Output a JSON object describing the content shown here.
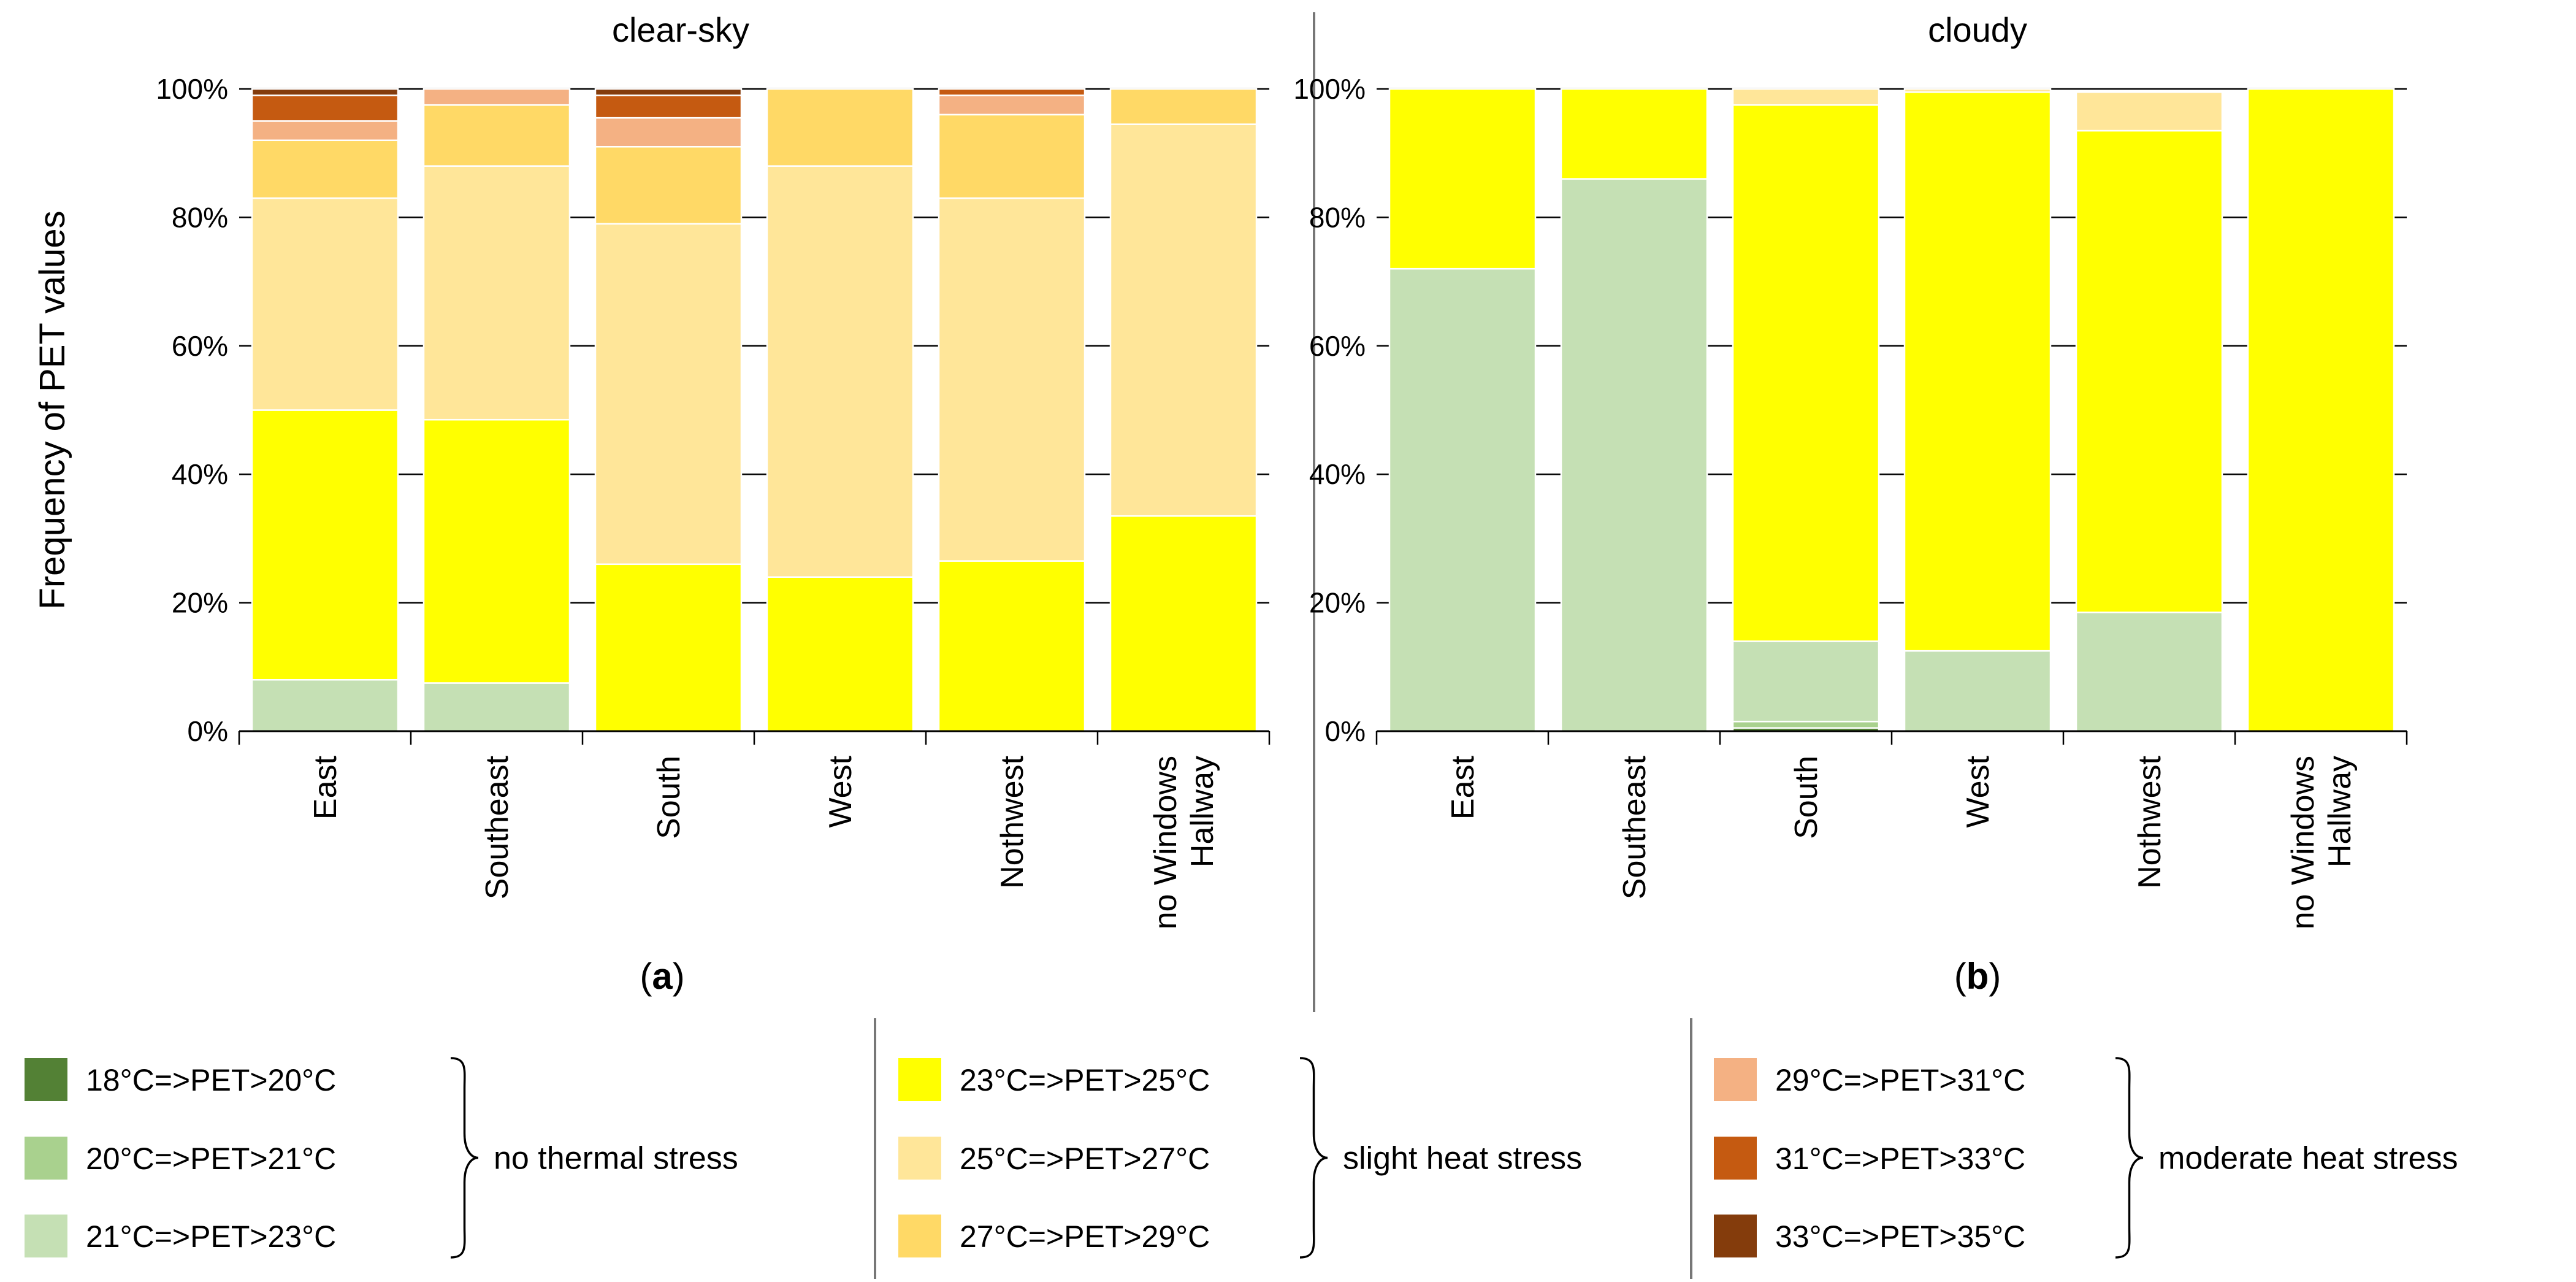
{
  "chart_data": [
    {
      "type": "bar",
      "stacked": true,
      "title": "clear-sky",
      "panel_label": "a",
      "ylabel": "Frequency of PET values",
      "xlabel": "",
      "ylim": [
        0,
        100
      ],
      "yticks": [
        "0%",
        "20%",
        "40%",
        "60%",
        "80%",
        "100%"
      ],
      "categories": [
        [
          "East"
        ],
        [
          "Southeast"
        ],
        [
          "South"
        ],
        [
          "West"
        ],
        [
          "Nothwest"
        ],
        [
          "Hallway",
          "no Windows"
        ]
      ],
      "series": [
        {
          "name": "18°C=>PET>20°C",
          "color": "#538135",
          "values": [
            0,
            0,
            0,
            0,
            0,
            0
          ]
        },
        {
          "name": "20°C=>PET>21°C",
          "color": "#A9D18E",
          "values": [
            0,
            0,
            0,
            0,
            0,
            0
          ]
        },
        {
          "name": "21°C=>PET>23°C",
          "color": "#C5E0B4",
          "values": [
            8,
            7.5,
            0,
            0,
            0,
            0
          ]
        },
        {
          "name": "23°C=>PET>25°C",
          "color": "#FFFF00",
          "values": [
            42,
            41,
            26,
            24,
            26.5,
            33.5
          ]
        },
        {
          "name": "25°C=>PET>27°C",
          "color": "#FFE699",
          "values": [
            33,
            39.5,
            53,
            64,
            56.5,
            61
          ]
        },
        {
          "name": "27°C=>PET>29°C",
          "color": "#FFD966",
          "values": [
            9,
            9.5,
            12,
            12,
            13,
            5.5
          ]
        },
        {
          "name": "29°C=>PET>31°C",
          "color": "#F4B183",
          "values": [
            3,
            2.5,
            4.5,
            0,
            3,
            0
          ]
        },
        {
          "name": "31°C=>PET>33°C",
          "color": "#C55A11",
          "values": [
            4,
            0,
            3.5,
            0,
            1,
            0
          ]
        },
        {
          "name": "33°C=>PET>35°C",
          "color": "#843C0C",
          "values": [
            1,
            0,
            1,
            0,
            0,
            0
          ]
        }
      ]
    },
    {
      "type": "bar",
      "stacked": true,
      "title": "cloudy",
      "panel_label": "b",
      "ylabel": "",
      "xlabel": "",
      "ylim": [
        0,
        100
      ],
      "yticks": [
        "0%",
        "20%",
        "40%",
        "60%",
        "80%",
        "100%"
      ],
      "categories": [
        [
          "East"
        ],
        [
          "Southeast"
        ],
        [
          "South"
        ],
        [
          "West"
        ],
        [
          "Nothwest"
        ],
        [
          "Hallway",
          "no Windows"
        ]
      ],
      "series": [
        {
          "name": "18°C=>PET>20°C",
          "color": "#538135",
          "values": [
            0,
            0,
            0.5,
            0,
            0,
            0
          ]
        },
        {
          "name": "20°C=>PET>21°C",
          "color": "#A9D18E",
          "values": [
            0,
            0,
            1,
            0,
            0,
            0
          ]
        },
        {
          "name": "21°C=>PET>23°C",
          "color": "#C5E0B4",
          "values": [
            72,
            86,
            12.5,
            12.5,
            18.5,
            0
          ]
        },
        {
          "name": "23°C=>PET>25°C",
          "color": "#FFFF00",
          "values": [
            28,
            14,
            83.5,
            87,
            75,
            100
          ]
        },
        {
          "name": "25°C=>PET>27°C",
          "color": "#FFE699",
          "values": [
            0,
            0,
            2.5,
            0.5,
            6,
            0
          ]
        },
        {
          "name": "27°C=>PET>29°C",
          "color": "#FFD966",
          "values": [
            0,
            0,
            0,
            0,
            0,
            0
          ]
        },
        {
          "name": "29°C=>PET>31°C",
          "color": "#F4B183",
          "values": [
            0,
            0,
            0,
            0,
            0,
            0
          ]
        },
        {
          "name": "31°C=>PET>33°C",
          "color": "#C55A11",
          "values": [
            0,
            0,
            0,
            0,
            0,
            0
          ]
        },
        {
          "name": "33°C=>PET>35°C",
          "color": "#843C0C",
          "values": [
            0,
            0,
            0,
            0,
            0,
            0
          ]
        }
      ]
    }
  ],
  "legend": {
    "groups": [
      {
        "label": "no thermal stress",
        "entries": [
          {
            "label": "18°C=>PET>20°C",
            "color": "#538135"
          },
          {
            "label": "20°C=>PET>21°C",
            "color": "#A9D18E"
          },
          {
            "label": "21°C=>PET>23°C",
            "color": "#C5E0B4"
          }
        ]
      },
      {
        "label": "slight heat stress",
        "entries": [
          {
            "label": "23°C=>PET>25°C",
            "color": "#FFFF00"
          },
          {
            "label": "25°C=>PET>27°C",
            "color": "#FFE699"
          },
          {
            "label": "27°C=>PET>29°C",
            "color": "#FFD966"
          }
        ]
      },
      {
        "label": "moderate heat stress",
        "entries": [
          {
            "label": "29°C=>PET>31°C",
            "color": "#F4B183"
          },
          {
            "label": "31°C=>PET>33°C",
            "color": "#C55A11"
          },
          {
            "label": "33°C=>PET>35°C",
            "color": "#843C0C"
          }
        ]
      }
    ]
  }
}
